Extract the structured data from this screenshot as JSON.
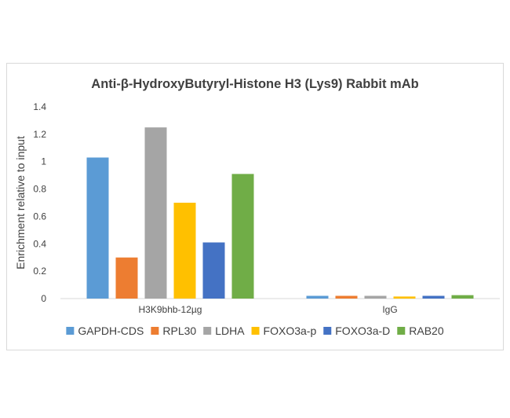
{
  "chart_data": {
    "type": "bar",
    "title": "Anti-β-HydroxyButyryl-Histone H3 (Lys9) Rabbit mAb",
    "ylabel": "Enrichment relative to input",
    "xlabel": "",
    "categories": [
      "H3K9bhb-12µg",
      "IgG"
    ],
    "ylim": [
      0,
      1.4
    ],
    "yticks": [
      "0",
      "0.2",
      "0.4",
      "0.6",
      "0.8",
      "1",
      "1.2",
      "1.4"
    ],
    "grid": false,
    "legend_position": "bottom",
    "series": [
      {
        "name": "GAPDH-CDS",
        "color": "#5b9bd5",
        "values": [
          1.03,
          0.02
        ]
      },
      {
        "name": "RPL30",
        "color": "#ed7d31",
        "values": [
          0.3,
          0.02
        ]
      },
      {
        "name": "LDHA",
        "color": "#a5a5a5",
        "values": [
          1.25,
          0.02
        ]
      },
      {
        "name": "FOXO3a-p",
        "color": "#ffc000",
        "values": [
          0.7,
          0.015
        ]
      },
      {
        "name": "FOXO3a-D",
        "color": "#4472c4",
        "values": [
          0.41,
          0.02
        ]
      },
      {
        "name": "RAB20",
        "color": "#70ad47",
        "values": [
          0.91,
          0.025
        ]
      }
    ]
  }
}
